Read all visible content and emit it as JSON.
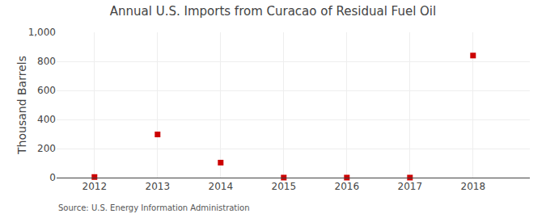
{
  "chart_data": {
    "type": "scatter",
    "title": "Annual U.S. Imports from Curacao of Residual Fuel Oil",
    "ylabel": "Thousand Barrels",
    "annotations": [
      "Source: U.S. Energy Information Administration"
    ],
    "x": [
      2012,
      2013,
      2014,
      2015,
      2016,
      2017,
      2018
    ],
    "values": [
      4,
      297,
      103,
      0,
      0,
      0,
      840
    ],
    "color": "#cc0000",
    "marker": "square",
    "xlim": [
      2011.4,
      2018.9
    ],
    "xticks": [
      2012,
      2013,
      2014,
      2015,
      2016,
      2017,
      2018
    ],
    "ylim": [
      0,
      1000
    ],
    "yticks": [
      0,
      200,
      400,
      600,
      800,
      {
        "value": 1000,
        "label": "1,000"
      }
    ],
    "grid": true
  }
}
